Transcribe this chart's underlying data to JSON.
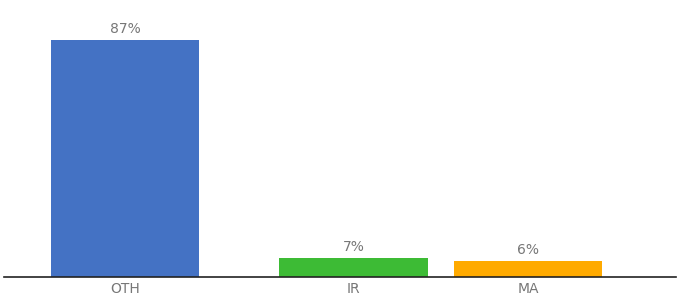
{
  "categories": [
    "OTH",
    "IR",
    "MA"
  ],
  "values": [
    87,
    7,
    6
  ],
  "labels": [
    "87%",
    "7%",
    "6%"
  ],
  "bar_colors": [
    "#4472c4",
    "#3dbb35",
    "#ffaa00"
  ],
  "background_color": "#ffffff",
  "ylim": [
    0,
    100
  ],
  "bar_width": 0.65,
  "label_fontsize": 10,
  "tick_fontsize": 10,
  "x_positions": [
    0.18,
    0.52,
    0.78
  ]
}
